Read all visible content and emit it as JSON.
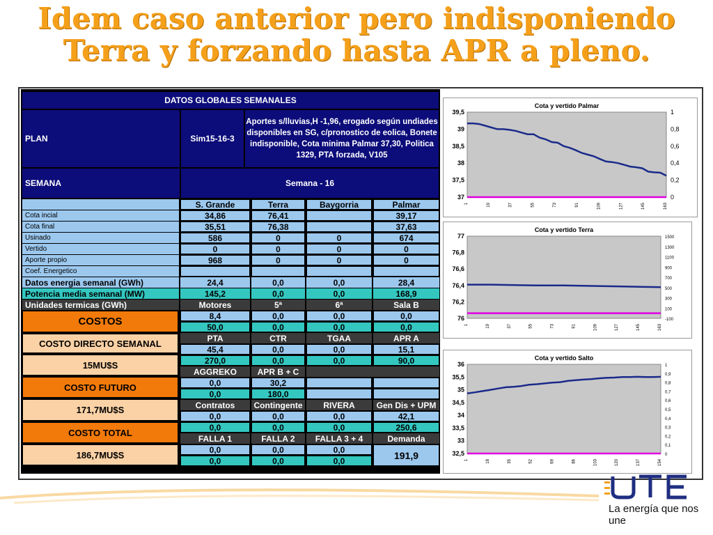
{
  "title": {
    "line1": "Idem caso anterior pero indisponiendo",
    "line2": "Terra y forzando hasta APR a pleno."
  },
  "slogan": "La energía que nos une",
  "colors": {
    "title": "#f5a01a",
    "navy": "#0c0c7a",
    "lightblue": "#9cc8ee",
    "turquoise": "#33c7c0",
    "orange": "#f27a0a",
    "blueLine": "#1a2a8a",
    "magentaLine": "#e000e0"
  },
  "table": {
    "header": "DATOS GLOBALES SEMANALES",
    "plan_label": "PLAN",
    "plan_code": "Sim15-16-3",
    "plan_desc": "Aportes s/lluvias,H -1,96, erogado según undiades disponibles en SG, c/pronostico de eolica, Bonete indisponible, Cota minima Palmar 37,30, Politica 1329, PTA forzada, V105",
    "semana_label": "SEMANA",
    "semana_value": "Semana - 16",
    "col_headers": [
      "S. Grande",
      "Terra",
      "Baygorria",
      "Palmar"
    ],
    "rows": [
      {
        "label": "Cota incial",
        "v": [
          "34,86",
          "76,41",
          "",
          "39,17"
        ]
      },
      {
        "label": "Cota final",
        "v": [
          "35,51",
          "76,38",
          "",
          "37,63"
        ]
      },
      {
        "label": "Usinado",
        "v": [
          "586",
          "0",
          "0",
          "674"
        ]
      },
      {
        "label": "Vertido",
        "v": [
          "0",
          "0",
          "0",
          "0"
        ]
      },
      {
        "label": "Aporte propio",
        "v": [
          "968",
          "0",
          "0",
          "0"
        ]
      },
      {
        "label": "Coef. Energetico",
        "v": [
          "",
          "",
          "",
          ""
        ]
      }
    ],
    "energia": {
      "label": "Datos energia semanal  (GWh)",
      "v": [
        "24,4",
        "0,0",
        "0,0",
        "28,4"
      ]
    },
    "potencia": {
      "label": "Potencia media semanal (MW)",
      "v": [
        "145,2",
        "0,0",
        "0,0",
        "168,9"
      ]
    },
    "termicas": {
      "label": "Unidades termicas (GWh)",
      "h": [
        "Motores",
        "5ª",
        "6ª",
        "Sala B"
      ]
    },
    "termicas_r1": [
      "8,4",
      "0,0",
      "0,0",
      "0,0"
    ],
    "termicas_r2": [
      "50,0",
      "0,0",
      "0,0",
      "0,0"
    ],
    "hdr2": [
      "PTA",
      "CTR",
      "TGAA",
      "APR A"
    ],
    "r2a": [
      "45,4",
      "0,0",
      "0,0",
      "15,1"
    ],
    "r2b": [
      "270,0",
      "0,0",
      "0,0",
      "90,0"
    ],
    "hdr3": [
      "AGGREKO",
      "APR B + C"
    ],
    "r3a": [
      "0,0",
      "30,2"
    ],
    "r3b": [
      "0,0",
      "180,0"
    ],
    "hdr4": [
      "Contratos",
      "Contingente",
      "RIVERA",
      "Gen Dis + UPM"
    ],
    "r4a": [
      "0,0",
      "0,0",
      "0,0",
      "42,1"
    ],
    "r4b": [
      "0,0",
      "0,0",
      "0,0",
      "250,6"
    ],
    "hdr5": [
      "FALLA 1",
      "FALLA 2",
      "FALLA 3 + 4",
      "Demanda"
    ],
    "r5a": [
      "0,0",
      "0,0",
      "0,0"
    ],
    "r5b": [
      "0,0",
      "0,0",
      "0,0"
    ],
    "demanda": "191,9",
    "costos": "COSTOS",
    "costo_directo_label": "COSTO DIRECTO SEMANAL",
    "costo_directo_value": "15MU$S",
    "costo_futuro_label": "COSTO FUTURO",
    "costo_futuro_value": "171,7MU$S",
    "costo_total_label": "COSTO TOTAL",
    "costo_total_value": "186,7MU$S"
  },
  "chart_data": [
    {
      "type": "line",
      "title": "Cota y vertido Palmar",
      "yticks": [
        "39,5",
        "39",
        "38,5",
        "38",
        "37,5",
        "37"
      ],
      "y2ticks": [
        "1",
        "0,8",
        "0,6",
        "0,4",
        "0,2",
        "0"
      ],
      "xticks": [
        "1",
        "19",
        "37",
        "55",
        "73",
        "91",
        "109",
        "127",
        "145",
        "163"
      ],
      "ylim": [
        37,
        39.5
      ],
      "y2lim": [
        0,
        1
      ],
      "series": [
        {
          "values": [
            39.17,
            39.17,
            39.15,
            39.1,
            39.05,
            39.0,
            39.0,
            38.98,
            38.95,
            38.9,
            38.85,
            38.85,
            38.75,
            38.7,
            38.62,
            38.6,
            38.5,
            38.45,
            38.38,
            38.3,
            38.25,
            38.2,
            38.12,
            38.05,
            38.03,
            38.0,
            37.95,
            37.9,
            37.88,
            37.85,
            37.75,
            37.73,
            37.72,
            37.63
          ],
          "color": "#1a2a8a",
          "axis": "left"
        },
        {
          "values": [
            0,
            0
          ],
          "color": "#e000e0",
          "axis": "right"
        }
      ]
    },
    {
      "type": "line",
      "title": "Cota y vertido Terra",
      "yticks": [
        "77",
        "76,8",
        "76,6",
        "76,4",
        "76,2",
        "76"
      ],
      "y2ticks": [
        "1500",
        "1300",
        "1100",
        "900",
        "700",
        "500",
        "300",
        "100",
        "-100"
      ],
      "xticks": [
        "1",
        "19",
        "37",
        "55",
        "73",
        "91",
        "109",
        "127",
        "145",
        "163"
      ],
      "ylim": [
        76,
        77
      ],
      "y2lim": [
        -100,
        1500
      ],
      "series": [
        {
          "values": [
            76.41,
            76.41,
            76.405,
            76.4,
            76.4,
            76.395,
            76.39,
            76.385,
            76.38
          ],
          "color": "#1a2a8a",
          "axis": "left"
        },
        {
          "values": [
            0,
            0
          ],
          "color": "#e000e0",
          "axis": "right"
        }
      ]
    },
    {
      "type": "line",
      "title": "Cota y vertido Salto",
      "yticks": [
        "36",
        "35,5",
        "35",
        "34,5",
        "34",
        "33,5",
        "33",
        "32,5"
      ],
      "y2ticks": [
        "1",
        "0,9",
        "0,8",
        "0,7",
        "0,6",
        "0,5",
        "0,4",
        "0,3",
        "0,2",
        "0,1",
        "0"
      ],
      "xticks": [
        "1",
        "18",
        "35",
        "52",
        "69",
        "86",
        "103",
        "120",
        "137",
        "154"
      ],
      "ylim": [
        32.5,
        36
      ],
      "y2lim": [
        0,
        1
      ],
      "series": [
        {
          "values": [
            34.86,
            34.9,
            34.95,
            35.0,
            35.05,
            35.1,
            35.12,
            35.15,
            35.2,
            35.22,
            35.25,
            35.28,
            35.3,
            35.35,
            35.38,
            35.4,
            35.42,
            35.45,
            35.47,
            35.48,
            35.5,
            35.5,
            35.51,
            35.5,
            35.5,
            35.51
          ],
          "color": "#1a2a8a",
          "axis": "left"
        },
        {
          "values": [
            0,
            0
          ],
          "color": "#e000e0",
          "axis": "right"
        }
      ]
    }
  ]
}
